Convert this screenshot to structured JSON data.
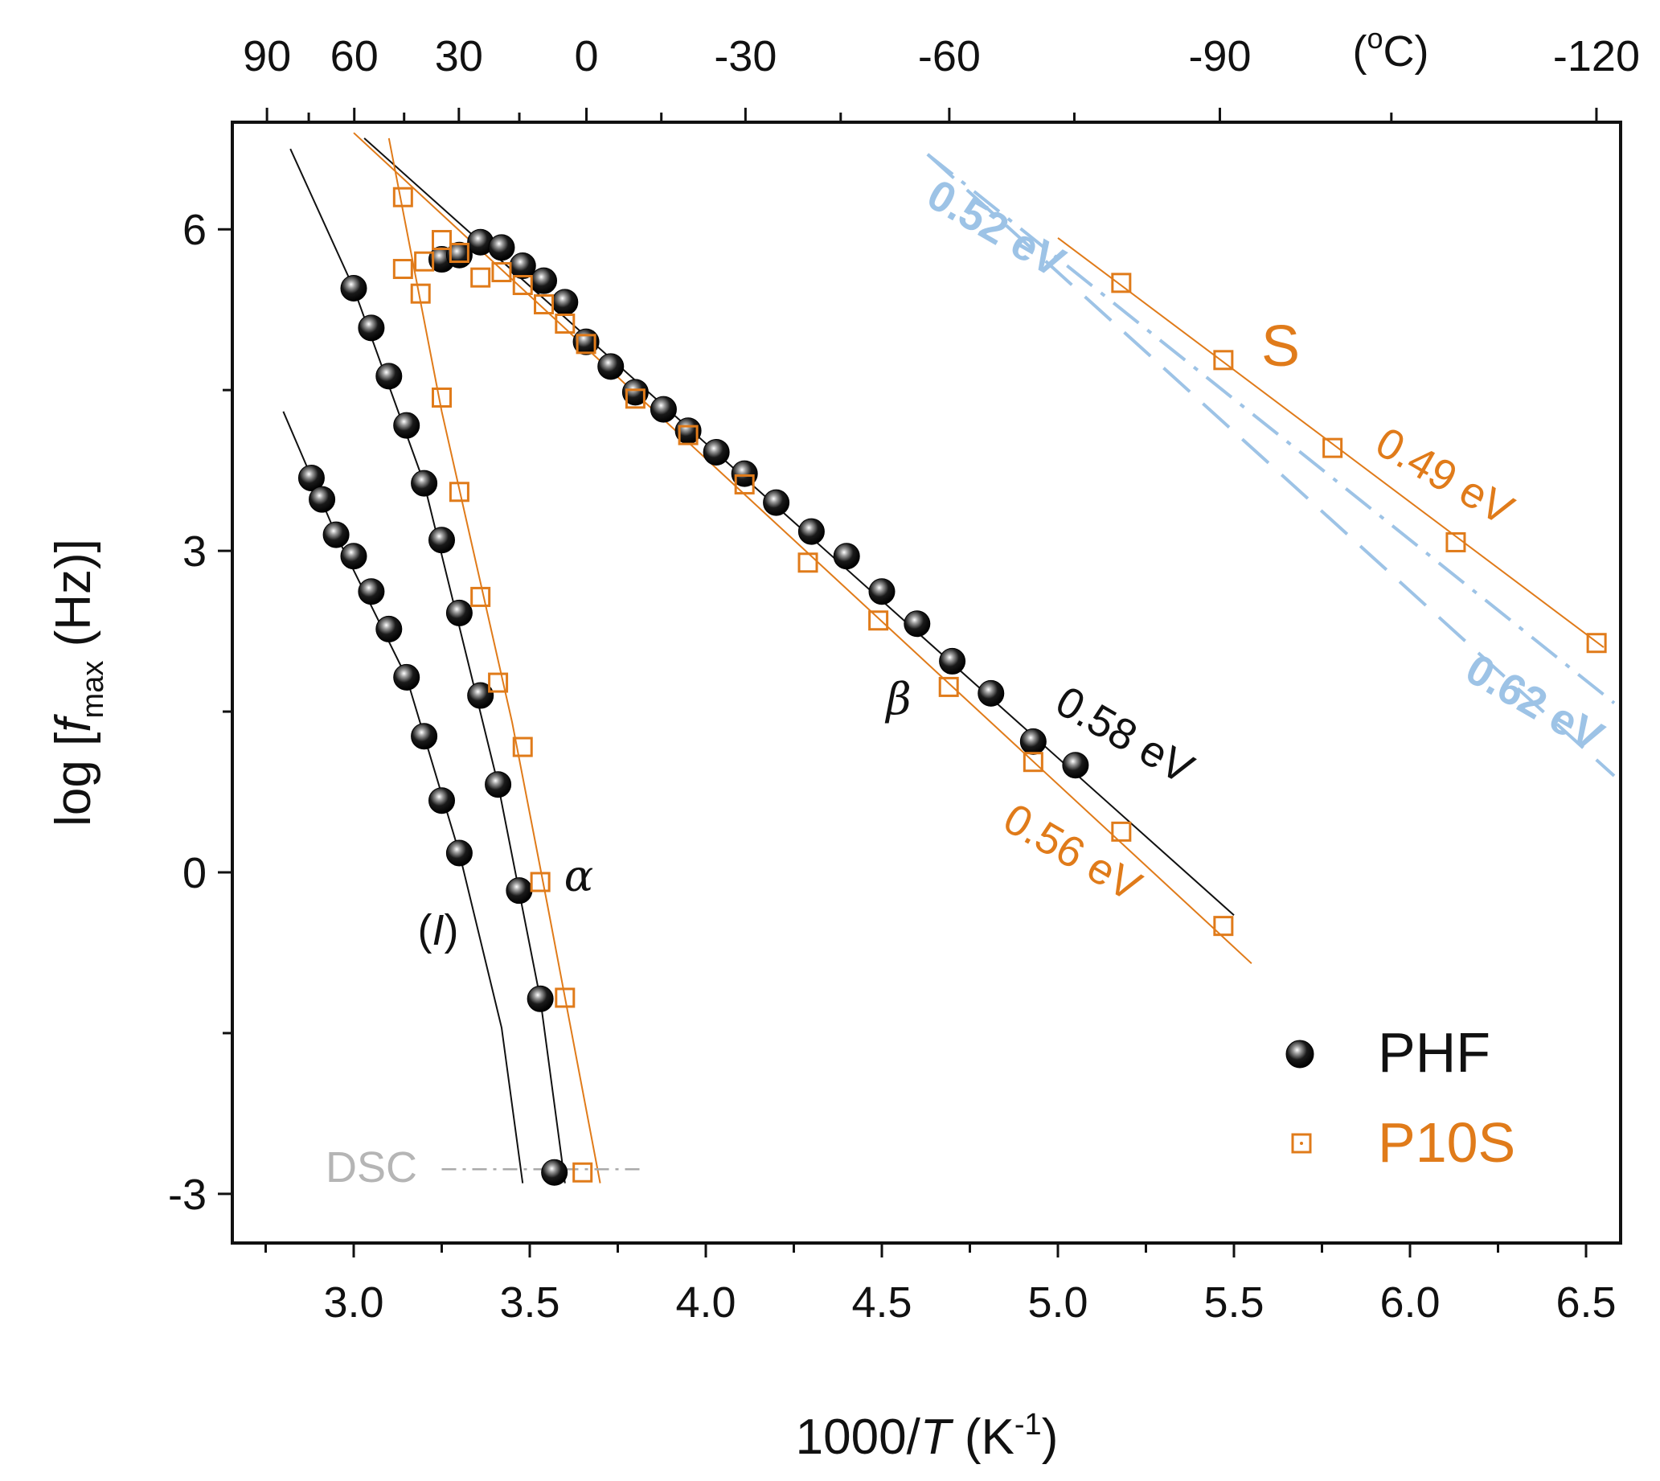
{
  "chart_data": {
    "type": "scatter",
    "title": "",
    "xlabel": "1000/T (K⁻¹)",
    "xlabel_prefix": "1000/",
    "xlabel_var": "T",
    "xlabel_unit_open": " (K",
    "xlabel_unit_sup": "-1",
    "xlabel_unit_close": ")",
    "ylabel": "log [f max (Hz)]",
    "ylabel_prefix": "log [",
    "ylabel_var": "f",
    "ylabel_sub": "max",
    "ylabel_suffix": " (Hz)]",
    "xlim": [
      2.7,
      6.6
    ],
    "ylim": [
      -3.5,
      7.0
    ],
    "xticks": [
      "3.0",
      "3.5",
      "4.0",
      "4.5",
      "5.0",
      "5.5",
      "6.0",
      "6.5"
    ],
    "xtick_values": [
      3.0,
      3.5,
      4.0,
      4.5,
      5.0,
      5.5,
      6.0,
      6.5
    ],
    "yticks": [
      "-3",
      "0",
      "3",
      "6"
    ],
    "ytick_values": [
      -3,
      0,
      3,
      6
    ],
    "top_axis": {
      "label": "(°C)",
      "label_open": "(",
      "label_sup": "o",
      "label_close": "C)",
      "ticks": [
        "90",
        "60",
        "30",
        "0",
        "-30",
        "-60",
        "-90",
        "-120"
      ],
      "tick_values_C": [
        90,
        60,
        30,
        0,
        -30,
        -60,
        -90,
        -120
      ]
    },
    "series": [
      {
        "name": "PHF",
        "marker": "sphere",
        "color": "#111111",
        "points": [
          [
            2.88,
            3.68
          ],
          [
            2.91,
            3.48
          ],
          [
            2.95,
            3.15
          ],
          [
            3.0,
            2.95
          ],
          [
            3.05,
            2.62
          ],
          [
            3.1,
            2.27
          ],
          [
            3.15,
            1.82
          ],
          [
            3.2,
            1.27
          ],
          [
            3.25,
            0.67
          ],
          [
            3.3,
            0.18
          ],
          [
            3.0,
            5.45
          ],
          [
            3.05,
            5.08
          ],
          [
            3.1,
            4.63
          ],
          [
            3.15,
            4.17
          ],
          [
            3.2,
            3.63
          ],
          [
            3.25,
            3.1
          ],
          [
            3.3,
            2.42
          ],
          [
            3.36,
            1.65
          ],
          [
            3.41,
            0.82
          ],
          [
            3.47,
            -0.17
          ],
          [
            3.53,
            -1.18
          ],
          [
            3.57,
            -2.8
          ],
          [
            3.25,
            5.72
          ],
          [
            3.3,
            5.76
          ],
          [
            3.36,
            5.88
          ],
          [
            3.42,
            5.83
          ],
          [
            3.48,
            5.66
          ],
          [
            3.54,
            5.52
          ],
          [
            3.6,
            5.32
          ],
          [
            3.66,
            4.95
          ],
          [
            3.73,
            4.72
          ],
          [
            3.8,
            4.48
          ],
          [
            3.88,
            4.32
          ],
          [
            3.95,
            4.12
          ],
          [
            4.03,
            3.92
          ],
          [
            4.11,
            3.72
          ],
          [
            4.2,
            3.45
          ],
          [
            4.3,
            3.18
          ],
          [
            4.4,
            2.95
          ],
          [
            4.5,
            2.62
          ],
          [
            4.6,
            2.32
          ],
          [
            4.7,
            1.97
          ],
          [
            4.81,
            1.67
          ],
          [
            4.93,
            1.22
          ],
          [
            5.05,
            1.0
          ]
        ]
      },
      {
        "name": "P10S",
        "marker": "open-square",
        "color": "#e07b1a",
        "points": [
          [
            3.14,
            6.3
          ],
          [
            3.14,
            5.63
          ],
          [
            3.19,
            5.4
          ],
          [
            3.2,
            5.7
          ],
          [
            3.25,
            5.9
          ],
          [
            3.3,
            5.78
          ],
          [
            3.36,
            5.55
          ],
          [
            3.42,
            5.6
          ],
          [
            3.48,
            5.48
          ],
          [
            3.54,
            5.3
          ],
          [
            3.6,
            5.12
          ],
          [
            3.66,
            4.93
          ],
          [
            3.8,
            4.42
          ],
          [
            3.95,
            4.08
          ],
          [
            4.11,
            3.62
          ],
          [
            4.29,
            2.89
          ],
          [
            4.49,
            2.35
          ],
          [
            4.69,
            1.73
          ],
          [
            4.93,
            1.03
          ],
          [
            5.18,
            0.38
          ],
          [
            5.47,
            -0.5
          ],
          [
            3.25,
            4.43
          ],
          [
            3.3,
            3.55
          ],
          [
            3.36,
            2.57
          ],
          [
            3.41,
            1.77
          ],
          [
            3.48,
            1.17
          ],
          [
            3.53,
            -0.09
          ],
          [
            3.6,
            -1.17
          ],
          [
            3.65,
            -2.8
          ],
          [
            5.18,
            5.5
          ],
          [
            5.47,
            4.78
          ],
          [
            5.78,
            3.96
          ],
          [
            6.13,
            3.08
          ],
          [
            6.53,
            2.14
          ]
        ]
      }
    ],
    "fit_lines": [
      {
        "name": "PHF beta fit",
        "color": "#111111",
        "style": "solid",
        "points": [
          [
            3.03,
            6.85
          ],
          [
            5.5,
            -0.4
          ]
        ]
      },
      {
        "name": "P10S beta fit",
        "color": "#e07b1a",
        "style": "solid",
        "points": [
          [
            3.0,
            6.9
          ],
          [
            5.55,
            -0.85
          ]
        ]
      },
      {
        "name": "P10S S fit",
        "color": "#e07b1a",
        "style": "solid",
        "points": [
          [
            5.0,
            5.92
          ],
          [
            6.55,
            2.1
          ]
        ]
      },
      {
        "name": "S upper dash-dot",
        "color": "#9dc3e6",
        "style": "dashdot",
        "points": [
          [
            4.63,
            6.7
          ],
          [
            6.58,
            1.58
          ]
        ]
      },
      {
        "name": "S lower dashed",
        "color": "#9dc3e6",
        "style": "dashed",
        "points": [
          [
            4.63,
            6.7
          ],
          [
            6.58,
            0.9
          ]
        ]
      },
      {
        "name": "P10S alpha fit",
        "color": "#e07b1a",
        "style": "solid",
        "points": [
          [
            3.1,
            6.85
          ],
          [
            3.25,
            4.3
          ],
          [
            3.45,
            1.4
          ],
          [
            3.55,
            -0.3
          ],
          [
            3.7,
            -2.9
          ]
        ]
      },
      {
        "name": "PHF alpha fit",
        "color": "#111111",
        "style": "solid",
        "points": [
          [
            2.82,
            6.75
          ],
          [
            3.0,
            5.45
          ],
          [
            3.2,
            3.63
          ],
          [
            3.41,
            0.82
          ],
          [
            3.53,
            -1.18
          ],
          [
            3.6,
            -2.9
          ]
        ]
      },
      {
        "name": "PHF (I) fit",
        "color": "#111111",
        "style": "solid",
        "points": [
          [
            2.8,
            4.3
          ],
          [
            2.95,
            3.15
          ],
          [
            3.15,
            1.82
          ],
          [
            3.3,
            0.18
          ],
          [
            3.42,
            -1.45
          ],
          [
            3.48,
            -2.9
          ]
        ]
      },
      {
        "name": "DSC line",
        "color": "#aaaaaa",
        "style": "dashdot",
        "points": [
          [
            3.25,
            -2.77
          ],
          [
            3.83,
            -2.77
          ]
        ]
      }
    ],
    "annotations": {
      "alpha": "α",
      "beta": "β",
      "I_open": "(",
      "I_var": "I",
      "I_close": ")",
      "S": "S",
      "dsc": "DSC",
      "ea_phf_beta": "0.58 eV",
      "ea_p10s_beta": "0.56 eV",
      "ea_p10s_s": "0.49 eV",
      "ea_upper": "0.52 eV",
      "ea_lower": "0.62 eV"
    },
    "legend": {
      "position": "bottom-right",
      "entries": [
        {
          "label": "PHF",
          "color": "#111111",
          "marker": "sphere"
        },
        {
          "label": "P10S",
          "color": "#e07b1a",
          "marker": "open-square"
        }
      ]
    }
  }
}
